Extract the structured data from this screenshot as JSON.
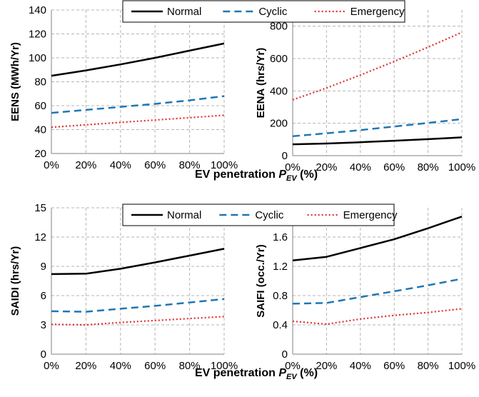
{
  "figure": {
    "xlabel_prefix": "EV penetration ",
    "xlabel_symbol": "P",
    "xlabel_subscript": "EV",
    "xlabel_suffix": " (%)"
  },
  "legend": {
    "placement": "top-center",
    "entries": [
      "Normal",
      "Cyclic",
      "Emergency"
    ]
  },
  "styles": {
    "Normal": {
      "color": "#000000",
      "dash": "solid"
    },
    "Cyclic": {
      "color": "#1f77b4",
      "dash": "dashed"
    },
    "Emergency": {
      "color": "#e03030",
      "dash": "dotted"
    }
  },
  "chart_data": [
    {
      "type": "line",
      "ylabel": "EENS (MWh/Yr)",
      "xlabel": "EV penetration P_EV (%)",
      "categories": [
        "0%",
        "20%",
        "40%",
        "60%",
        "80%",
        "100%"
      ],
      "ylim": [
        20,
        140
      ],
      "yticks": [
        20,
        40,
        60,
        80,
        100,
        120,
        140
      ],
      "grid": true,
      "series": [
        {
          "name": "Normal",
          "values": [
            85,
            89.5,
            94.5,
            100,
            106,
            112
          ]
        },
        {
          "name": "Cyclic",
          "values": [
            54,
            56.5,
            59,
            61.5,
            64.5,
            68
          ]
        },
        {
          "name": "Emergency",
          "values": [
            42,
            44,
            46,
            48,
            50,
            52
          ]
        }
      ]
    },
    {
      "type": "line",
      "ylabel": "EENA (hrs/Yr)",
      "xlabel": "EV penetration P_EV (%)",
      "categories": [
        "0%",
        "20%",
        "40%",
        "60%",
        "80%",
        "100%"
      ],
      "ylim": [
        0,
        900
      ],
      "yticks": [
        0,
        200,
        400,
        600,
        800
      ],
      "grid": true,
      "series": [
        {
          "name": "Normal",
          "values": [
            70,
            75,
            83,
            92,
            102,
            113
          ]
        },
        {
          "name": "Cyclic",
          "values": [
            120,
            138,
            158,
            180,
            202,
            226
          ]
        },
        {
          "name": "Emergency",
          "values": [
            345,
            418,
            498,
            582,
            670,
            762
          ]
        }
      ]
    },
    {
      "type": "line",
      "ylabel": "SAIDI (hrs/Yr)",
      "xlabel": "EV penetration P_EV (%)",
      "categories": [
        "0%",
        "20%",
        "40%",
        "60%",
        "80%",
        "100%"
      ],
      "ylim": [
        0,
        15
      ],
      "yticks": [
        0,
        3,
        6,
        9,
        12,
        15
      ],
      "grid": true,
      "series": [
        {
          "name": "Normal",
          "values": [
            8.2,
            8.25,
            8.75,
            9.4,
            10.1,
            10.8
          ]
        },
        {
          "name": "Cyclic",
          "values": [
            4.4,
            4.35,
            4.65,
            4.95,
            5.3,
            5.65
          ]
        },
        {
          "name": "Emergency",
          "values": [
            3.05,
            3.0,
            3.25,
            3.45,
            3.65,
            3.85
          ]
        }
      ]
    },
    {
      "type": "line",
      "ylabel": "SAIFI (occ./Yr)",
      "xlabel": "EV penetration P_EV (%)",
      "categories": [
        "0%",
        "20%",
        "40%",
        "60%",
        "80%",
        "100%"
      ],
      "ylim": [
        0,
        2.0
      ],
      "yticks": [
        0,
        0.4,
        0.8,
        1.2,
        1.6
      ],
      "ytick_labels": [
        "0",
        "0.4",
        "0.8",
        "1.2",
        "1.6"
      ],
      "grid": true,
      "series": [
        {
          "name": "Normal",
          "values": [
            1.28,
            1.33,
            1.45,
            1.57,
            1.72,
            1.88
          ]
        },
        {
          "name": "Cyclic",
          "values": [
            0.69,
            0.7,
            0.78,
            0.86,
            0.94,
            1.03
          ]
        },
        {
          "name": "Emergency",
          "values": [
            0.45,
            0.41,
            0.48,
            0.53,
            0.57,
            0.62
          ]
        }
      ]
    }
  ]
}
